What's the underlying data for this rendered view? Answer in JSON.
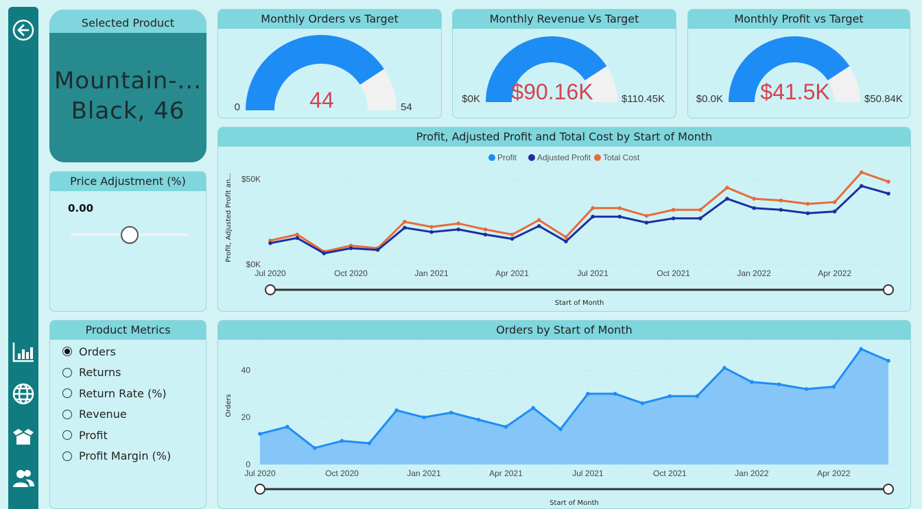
{
  "sidebar": {
    "items": [
      {
        "name": "back-icon"
      },
      {
        "name": "bar-chart-icon"
      },
      {
        "name": "globe-icon"
      },
      {
        "name": "box-icon"
      },
      {
        "name": "users-icon"
      }
    ]
  },
  "selected_product": {
    "header": "Selected Product",
    "name_line1": "Mountain-...",
    "name_line2": "Black, 46"
  },
  "price_adjustment": {
    "header": "Price Adjustment (%)",
    "value": "0.00",
    "slider_position": 0.5
  },
  "gauges": [
    {
      "title": "Monthly Orders vs Target",
      "value_label": "44",
      "min_label": "0",
      "max_label": "54",
      "fraction": 0.815
    },
    {
      "title": "Monthly Revenue Vs Target",
      "value_label": "$90.16K",
      "min_label": "$0K",
      "max_label": "$110.45K",
      "fraction": 0.816
    },
    {
      "title": "Monthly Profit vs Target",
      "value_label": "$41.5K",
      "min_label": "$0.0K",
      "max_label": "$50.84K",
      "fraction": 0.816
    }
  ],
  "product_metrics": {
    "header": "Product Metrics",
    "options": [
      {
        "label": "Orders",
        "selected": true
      },
      {
        "label": "Returns",
        "selected": false
      },
      {
        "label": "Return Rate (%)",
        "selected": false
      },
      {
        "label": "Revenue",
        "selected": false
      },
      {
        "label": "Profit",
        "selected": false
      },
      {
        "label": "Profit Margin (%)",
        "selected": false
      }
    ]
  },
  "colors": {
    "sidebar": "#107c81",
    "gauge_fill": "#1e8cf5",
    "gauge_track": "#f1f1f1",
    "gauge_value": "#d8414e",
    "profit": "#1e8cf5",
    "adjusted_profit": "#1a2fa0",
    "total_cost": "#e86a3a",
    "orders_line": "#1e8cf5",
    "orders_area": "#85c5f7"
  },
  "chart_data": [
    {
      "type": "line",
      "title": "Profit, Adjusted Profit and Total Cost by Start of Month",
      "xlabel": "Start of Month",
      "ylabel": "Profit, Adjusted Profit an...",
      "ylim": [
        0,
        55000
      ],
      "ytick_values": [
        0,
        50000
      ],
      "ytick_labels": [
        "$0K",
        "$50K"
      ],
      "xtick_labels": [
        "Jul 2020",
        "Oct 2020",
        "Jan 2021",
        "Apr 2021",
        "Jul 2021",
        "Oct 2021",
        "Jan 2022",
        "Apr 2022"
      ],
      "x": [
        "2020-07",
        "2020-08",
        "2020-09",
        "2020-10",
        "2020-11",
        "2020-12",
        "2021-01",
        "2021-02",
        "2021-03",
        "2021-04",
        "2021-05",
        "2021-06",
        "2021-07",
        "2021-08",
        "2021-09",
        "2021-10",
        "2021-11",
        "2021-12",
        "2022-01",
        "2022-02",
        "2022-03",
        "2022-04",
        "2022-05",
        "2022-06"
      ],
      "legend": "top-center",
      "series": [
        {
          "name": "Profit",
          "color": "#1e8cf5",
          "values": [
            12500,
            15500,
            6500,
            9500,
            8500,
            21500,
            19000,
            20500,
            17500,
            15000,
            22500,
            13500,
            28000,
            28000,
            24500,
            27000,
            27000,
            38500,
            33000,
            32000,
            30000,
            31000,
            46000,
            41500
          ]
        },
        {
          "name": "Adjusted Profit",
          "color": "#1a2fa0",
          "values": [
            12500,
            15500,
            6500,
            9500,
            8500,
            21500,
            19000,
            20500,
            17500,
            15000,
            22500,
            13500,
            28000,
            28000,
            24500,
            27000,
            27000,
            38500,
            33000,
            32000,
            30000,
            31000,
            46000,
            41500
          ]
        },
        {
          "name": "Total Cost",
          "color": "#e86a3a",
          "values": [
            14000,
            17500,
            7500,
            11000,
            9500,
            25000,
            22000,
            24000,
            20500,
            17500,
            26000,
            16000,
            33000,
            33000,
            28500,
            32000,
            32000,
            45000,
            38500,
            37500,
            35500,
            36500,
            54000,
            48500
          ]
        }
      ]
    },
    {
      "type": "area",
      "title": "Orders by Start of Month",
      "xlabel": "Start of Month",
      "ylabel": "Orders",
      "ylim": [
        0,
        50
      ],
      "ytick_values": [
        0,
        20,
        40
      ],
      "ytick_labels": [
        "0",
        "20",
        "40"
      ],
      "xtick_labels": [
        "Jul 2020",
        "Oct 2020",
        "Jan 2021",
        "Apr 2021",
        "Jul 2021",
        "Oct 2021",
        "Jan 2022",
        "Apr 2022"
      ],
      "x": [
        "2020-07",
        "2020-08",
        "2020-09",
        "2020-10",
        "2020-11",
        "2020-12",
        "2021-01",
        "2021-02",
        "2021-03",
        "2021-04",
        "2021-05",
        "2021-06",
        "2021-07",
        "2021-08",
        "2021-09",
        "2021-10",
        "2021-11",
        "2021-12",
        "2022-01",
        "2022-02",
        "2022-03",
        "2022-04",
        "2022-05",
        "2022-06"
      ],
      "series": [
        {
          "name": "Orders",
          "color": "#1e8cf5",
          "values": [
            13,
            16,
            7,
            10,
            9,
            23,
            20,
            22,
            19,
            16,
            24,
            15,
            30,
            30,
            26,
            29,
            29,
            41,
            35,
            34,
            32,
            33,
            49,
            44
          ]
        }
      ]
    }
  ]
}
